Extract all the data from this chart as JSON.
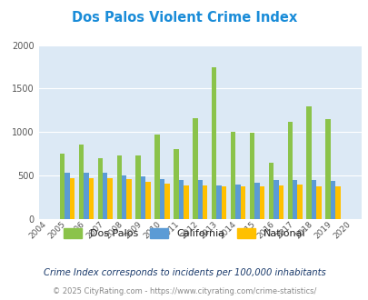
{
  "title": "Dos Palos Violent Crime Index",
  "years": [
    2004,
    2005,
    2006,
    2007,
    2008,
    2009,
    2010,
    2011,
    2012,
    2013,
    2014,
    2015,
    2016,
    2017,
    2018,
    2019,
    2020
  ],
  "dos_palos": [
    0,
    750,
    860,
    700,
    730,
    730,
    970,
    800,
    1160,
    1740,
    1000,
    990,
    650,
    1120,
    1290,
    1150,
    0
  ],
  "california": [
    0,
    530,
    530,
    530,
    500,
    490,
    455,
    445,
    450,
    390,
    400,
    420,
    450,
    450,
    445,
    440,
    0
  ],
  "national": [
    0,
    470,
    470,
    465,
    460,
    430,
    405,
    390,
    390,
    370,
    370,
    375,
    390,
    395,
    375,
    370,
    0
  ],
  "color_dos_palos": "#8bc34a",
  "color_california": "#5b9bd5",
  "color_national": "#ffc000",
  "bg_color": "#dce9f5",
  "ylim": [
    0,
    2000
  ],
  "yticks": [
    0,
    500,
    1000,
    1500,
    2000
  ],
  "subtitle": "Crime Index corresponds to incidents per 100,000 inhabitants",
  "footer": "© 2025 CityRating.com - https://www.cityrating.com/crime-statistics/",
  "legend_labels": [
    "Dos Palos",
    "California",
    "National"
  ],
  "title_color": "#1a8cd8",
  "subtitle_color": "#1a3a6b",
  "footer_color": "#888888",
  "footer_link_color": "#1a8cd8"
}
